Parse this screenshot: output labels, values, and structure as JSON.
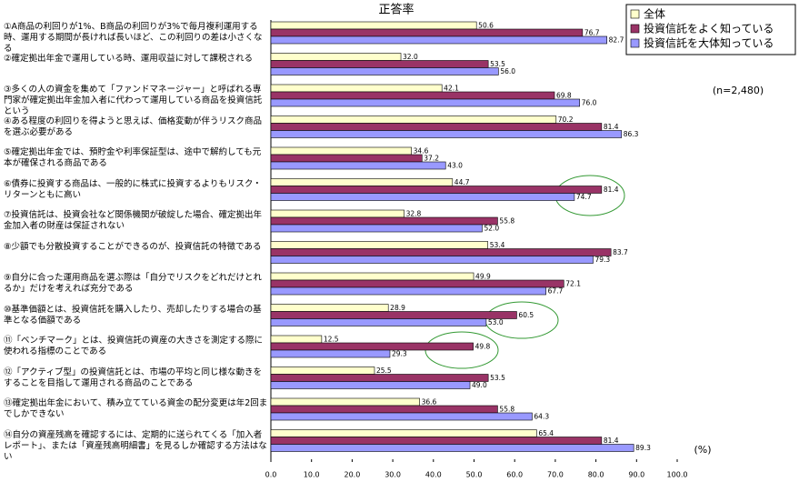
{
  "chart_data": {
    "type": "bar",
    "orientation": "horizontal",
    "title": "正答率",
    "categories": [
      "①A商品の利回りが1%、B商品の利回りが3%で毎月複利運用する時、運用する期間が長ければ長いほど、この利回りの差は小さくなる",
      "②確定拠出年金で運用している時、運用収益に対して課税される",
      "③多くの人の資金を集めて「ファンドマネージャー」と呼ばれる専門家が確定拠出年金加入者に代わって運用している商品を投資信託という",
      "④ある程度の利回りを得ようと思えば、価格変動が伴うリスク商品を選ぶ必要がある",
      "⑤確定拠出年金では、預貯金や利率保証型は、途中で解約しても元本が確保される商品である",
      "⑥債券に投資する商品は、一般的に株式に投資するよりもリスク・リターンともに高い",
      "⑦投資信託は、投資会社など関係機関が破綻した場合、確定拠出年金加入者の財産は保証されない",
      "⑧少額でも分散投資することができるのが、投資信託の特徴である",
      "⑨自分に合った運用商品を選ぶ際は「自分でリスクをどれだけとれるか」だけを考えれば充分である",
      "⑩基準価額とは、投資信託を購入したり、売却したりする場合の基準となる価額である",
      "⑪「ベンチマーク」とは、投資信託の資産の大きさを測定する際に使われる指標のことである",
      "⑫「アクティブ型」の投資信託とは、市場の平均と同じ様な動きをすることを目指して運用される商品のことである",
      "⑬確定拠出年金において、積み立てている資金の配分変更は年2回までしかできない",
      "⑭自分の資産残高を確認するには、定期的に送られてくる「加入者レポート」、または「資産残高明細書」を見るしか確認する方法はない"
    ],
    "series": [
      {
        "name": "全体",
        "color": "#ffffcc",
        "values": [
          50.6,
          32.0,
          42.1,
          70.2,
          34.6,
          44.7,
          32.8,
          53.4,
          49.9,
          28.9,
          12.5,
          25.5,
          36.6,
          65.4
        ],
        "value_labels": [
          "50.6",
          "32.0",
          "42.1",
          "70.2",
          "34.6",
          "44.7",
          "32.8",
          "53.4",
          "49.9",
          "28.9",
          "12.5",
          "25.5",
          "36.6",
          "65.4"
        ]
      },
      {
        "name": "投資信託をよく知っている",
        "color": "#993366",
        "values": [
          76.7,
          53.5,
          69.8,
          81.4,
          37.2,
          81.4,
          55.8,
          83.7,
          72.1,
          60.5,
          49.8,
          53.5,
          55.8,
          81.4
        ],
        "value_labels": [
          "76.7",
          "53.5",
          "69.8",
          "81.4",
          "37.2",
          "81.4",
          "55.8",
          "83.7",
          "72.1",
          "60.5",
          "49.8",
          "53.5",
          "55.8",
          "81.4"
        ]
      },
      {
        "name": "投資信託を大体知っている",
        "color": "#9999ff",
        "values": [
          82.7,
          56.0,
          76.0,
          86.3,
          43.0,
          74.7,
          52.0,
          79.3,
          67.7,
          53.0,
          29.3,
          49.0,
          64.3,
          89.3
        ],
        "value_labels": [
          "82.7",
          "56.0",
          "76.0",
          "86.3",
          "43.0",
          "74.7",
          "52.0",
          "79.3",
          "67.7",
          "53.0",
          "29.3",
          "49.0",
          "64.3",
          "89.3"
        ]
      }
    ],
    "xlim": [
      0,
      100
    ],
    "xticks": [
      {
        "value": 0,
        "label": "0.0"
      },
      {
        "value": 10,
        "label": "10.0"
      },
      {
        "value": 20,
        "label": "20.0"
      },
      {
        "value": 30,
        "label": "30.0"
      },
      {
        "value": 40,
        "label": "40.0"
      },
      {
        "value": 50,
        "label": "50.0"
      },
      {
        "value": 60,
        "label": "60.0"
      },
      {
        "value": 70,
        "label": "70.0"
      },
      {
        "value": 80,
        "label": "80.0"
      },
      {
        "value": 90,
        "label": "90.0"
      },
      {
        "value": 100,
        "label": "100.0"
      }
    ],
    "annotations": [
      "(n=2,480)",
      "(%)"
    ],
    "legend": "top-right"
  }
}
